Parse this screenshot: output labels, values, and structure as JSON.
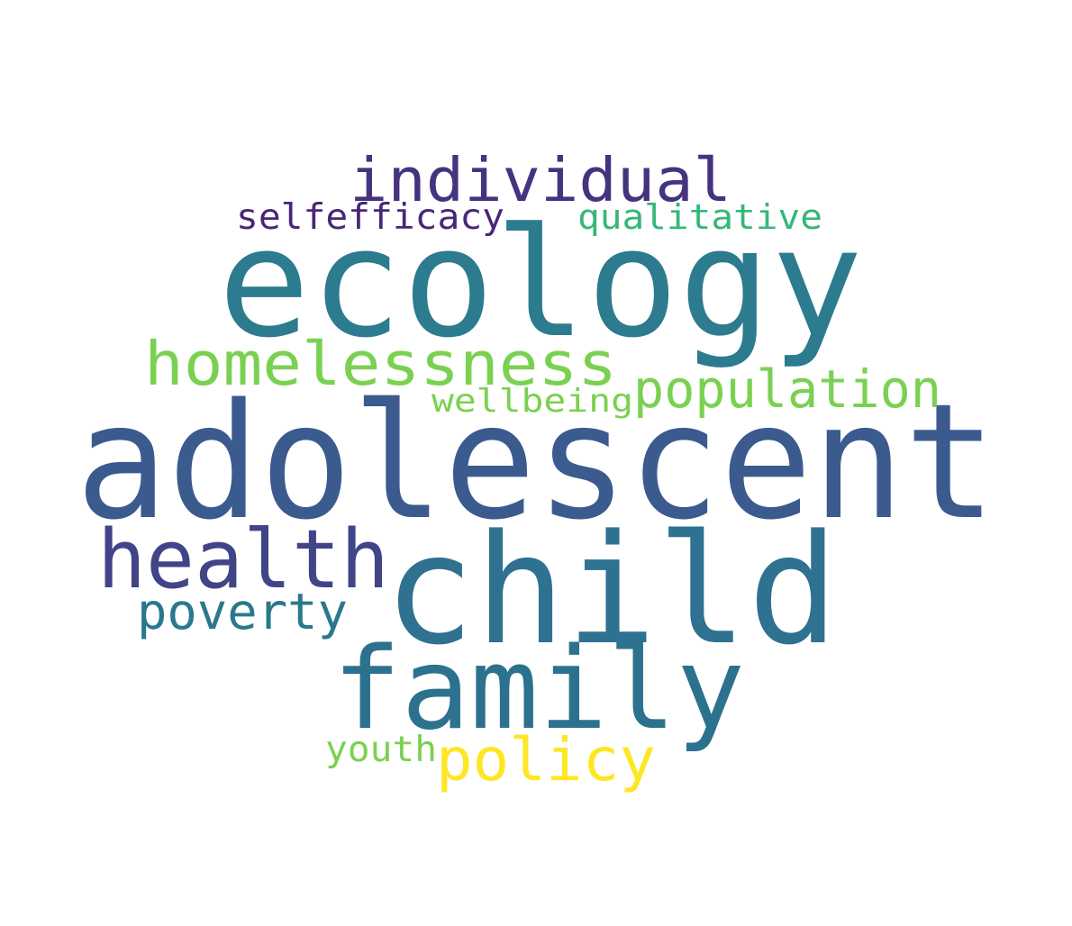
{
  "words": [
    {
      "text": "adolescent",
      "color": "#3b5b8f"
    },
    {
      "text": "child",
      "color": "#2f7191"
    },
    {
      "text": "ecology",
      "color": "#2c7b8e"
    },
    {
      "text": "family",
      "color": "#2c728e"
    },
    {
      "text": "health",
      "color": "#414487"
    },
    {
      "text": "homelessness",
      "color": "#7ad151"
    },
    {
      "text": "individual",
      "color": "#46337f"
    },
    {
      "text": "population",
      "color": "#7ad151"
    },
    {
      "text": "poverty",
      "color": "#2a788e"
    },
    {
      "text": "policy",
      "color": "#fde725"
    },
    {
      "text": "selfefficacy",
      "color": "#482677"
    },
    {
      "text": "qualitative",
      "color": "#35b779"
    },
    {
      "text": "wellbeing",
      "color": "#7ad151"
    },
    {
      "text": "youth",
      "color": "#7ad151"
    }
  ]
}
